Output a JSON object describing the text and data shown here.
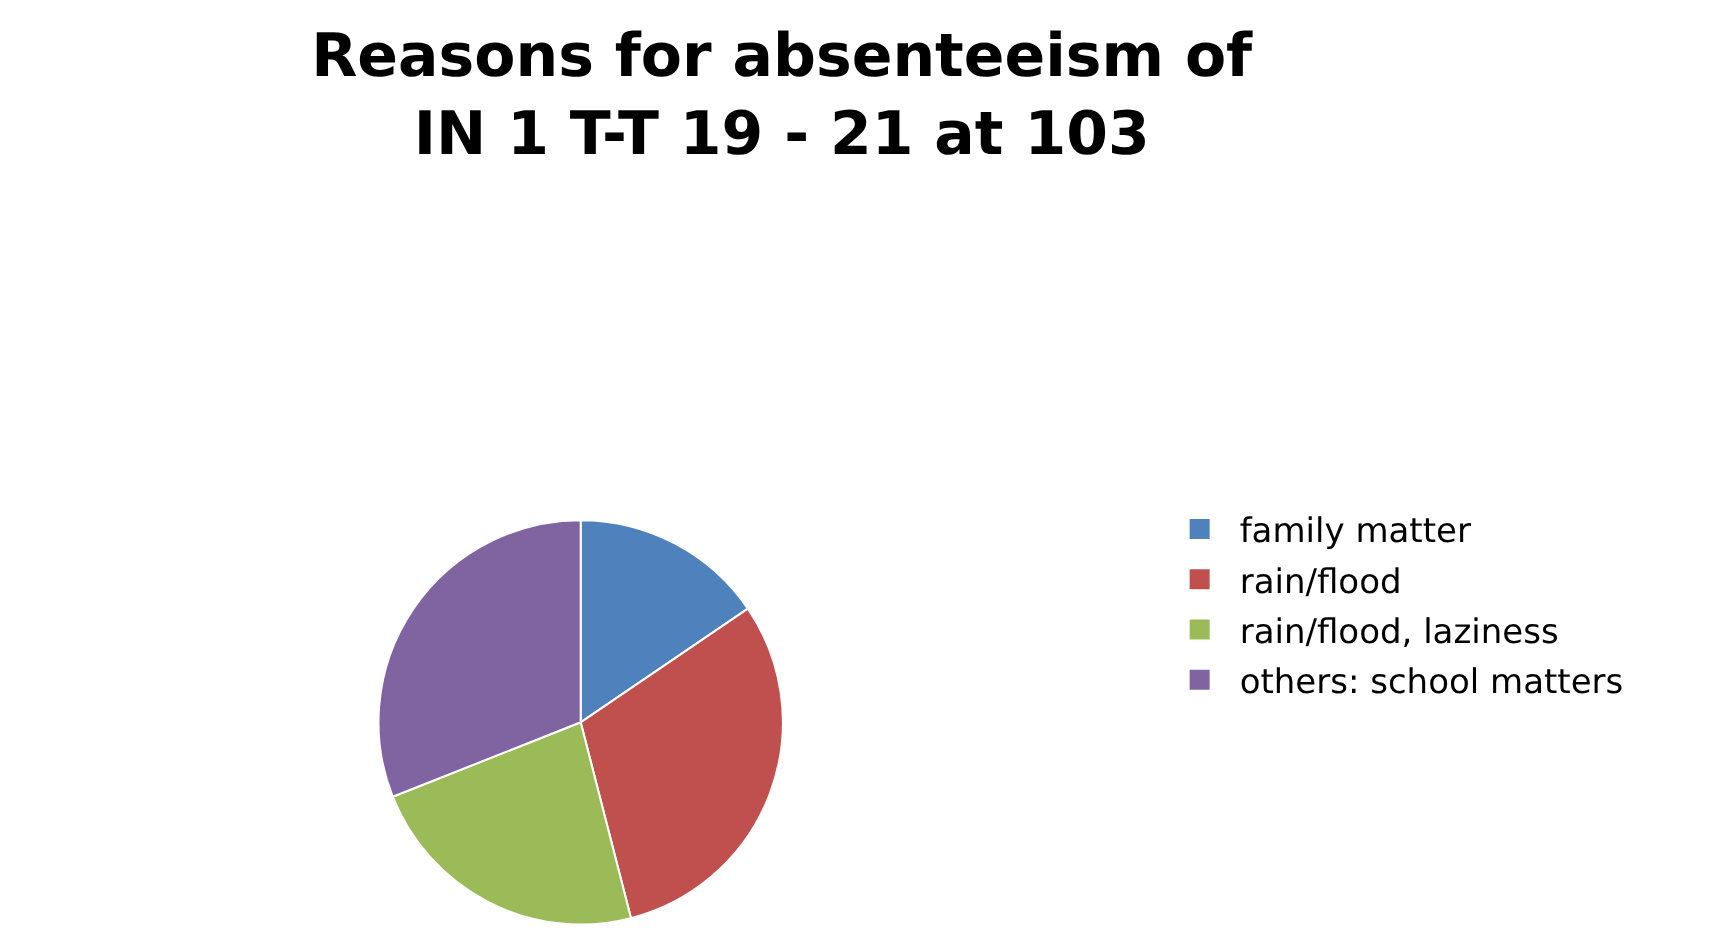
{
  "chart_data": {
    "type": "pie",
    "title": "Reasons for absenteeism of\nIN 1 T-T 19 - 21 at 103",
    "categories": [
      "family matter",
      "rain/flood",
      "rain/flood, laziness",
      "others: school matters"
    ],
    "values": [
      15.5,
      30.5,
      23,
      31
    ],
    "colors": [
      "#4f81bd",
      "#c0504d",
      "#9bbb59",
      "#8064a2"
    ],
    "legend": "right"
  }
}
